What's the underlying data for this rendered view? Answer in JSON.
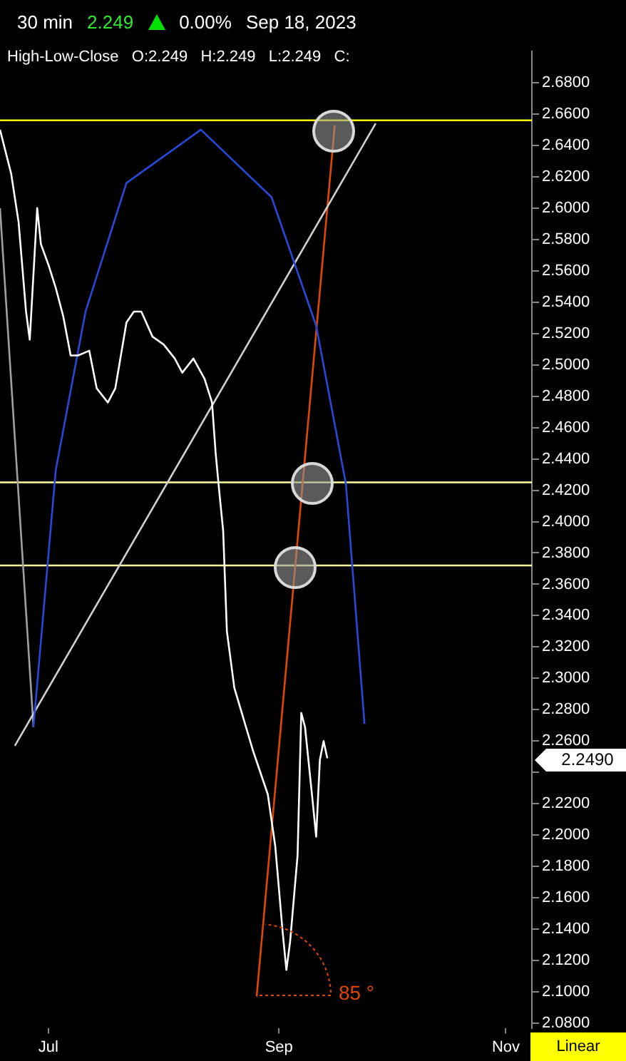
{
  "chart_data": {
    "type": "line",
    "title": "30 min",
    "annotations": [
      "2.249",
      "0.00%",
      "Sep 18, 2023",
      "High-Low-Close   O:2.249   H:2.249   L:2.249   C:",
      "Linear",
      "85 °",
      "2.2490"
    ],
    "xlim": [
      "2023-06-18",
      "2023-11-08"
    ],
    "xticks": [
      {
        "value": "2023-07-01",
        "label": "Jul"
      },
      {
        "value": "2023-09-01",
        "label": "Sep"
      },
      {
        "value": "2023-11-01",
        "label": "Nov"
      }
    ],
    "ylim": [
      2.077,
      2.7
    ],
    "yticks": [
      {
        "value": 2.08,
        "label": "2.0800"
      },
      {
        "value": 2.1,
        "label": "2.1000"
      },
      {
        "value": 2.12,
        "label": "2.1200"
      },
      {
        "value": 2.14,
        "label": "2.1400"
      },
      {
        "value": 2.16,
        "label": "2.1600"
      },
      {
        "value": 2.18,
        "label": "2.1800"
      },
      {
        "value": 2.2,
        "label": "2.2000"
      },
      {
        "value": 2.22,
        "label": "2.2200"
      },
      {
        "value": 2.24,
        "label": null
      },
      {
        "value": 2.26,
        "label": "2.2600"
      },
      {
        "value": 2.28,
        "label": "2.2800"
      },
      {
        "value": 2.3,
        "label": "2.3000"
      },
      {
        "value": 2.32,
        "label": "2.3200"
      },
      {
        "value": 2.34,
        "label": "2.3400"
      },
      {
        "value": 2.36,
        "label": "2.3600"
      },
      {
        "value": 2.38,
        "label": "2.3800"
      },
      {
        "value": 2.4,
        "label": "2.4000"
      },
      {
        "value": 2.42,
        "label": "2.4200"
      },
      {
        "value": 2.44,
        "label": "2.4400"
      },
      {
        "value": 2.46,
        "label": "2.4600"
      },
      {
        "value": 2.48,
        "label": "2.4800"
      },
      {
        "value": 2.5,
        "label": "2.5000"
      },
      {
        "value": 2.52,
        "label": "2.5200"
      },
      {
        "value": 2.54,
        "label": "2.5400"
      },
      {
        "value": 2.56,
        "label": "2.5600"
      },
      {
        "value": 2.58,
        "label": "2.5800"
      },
      {
        "value": 2.6,
        "label": "2.6000"
      },
      {
        "value": 2.62,
        "label": "2.6200"
      },
      {
        "value": 2.64,
        "label": "2.6400"
      },
      {
        "value": 2.66,
        "label": "2.6600"
      },
      {
        "value": 2.68,
        "label": "2.6800"
      }
    ],
    "series": [
      {
        "color": "#ffffff",
        "x": [
          "2023-06-18",
          "2023-06-21",
          "2023-06-23",
          "2023-06-25",
          "2023-06-26",
          "2023-06-28",
          "2023-06-29",
          "2023-07-01",
          "2023-07-03",
          "2023-07-05",
          "2023-07-07",
          "2023-07-09",
          "2023-07-12",
          "2023-07-14",
          "2023-07-17",
          "2023-07-19",
          "2023-07-22",
          "2023-07-24",
          "2023-07-26",
          "2023-07-29",
          "2023-08-01",
          "2023-08-04",
          "2023-08-06",
          "2023-08-09",
          "2023-08-12",
          "2023-08-14",
          "2023-08-15",
          "2023-08-16",
          "2023-08-17",
          "2023-08-18",
          "2023-08-20",
          "2023-08-25",
          "2023-08-29",
          "2023-08-31",
          "2023-09-02",
          "2023-09-03",
          "2023-09-04",
          "2023-09-06",
          "2023-09-07",
          "2023-09-08",
          "2023-09-10",
          "2023-09-11",
          "2023-09-12",
          "2023-09-13",
          "2023-09-14"
        ],
        "values": [
          2.65,
          2.622,
          2.591,
          2.534,
          2.516,
          2.6,
          2.577,
          2.564,
          2.549,
          2.531,
          2.506,
          2.506,
          2.509,
          2.485,
          2.476,
          2.485,
          2.527,
          2.534,
          2.534,
          2.518,
          2.513,
          2.504,
          2.495,
          2.504,
          2.491,
          2.476,
          2.443,
          2.418,
          2.394,
          2.33,
          2.294,
          2.254,
          2.226,
          2.193,
          2.138,
          2.114,
          2.132,
          2.187,
          2.278,
          2.269,
          2.223,
          2.199,
          2.248,
          2.26,
          2.249
        ]
      },
      {
        "color": "#2848d8",
        "x": [
          "2023-06-27",
          "2023-07-03",
          "2023-07-11",
          "2023-07-22",
          "2023-08-11",
          "2023-08-30",
          "2023-09-11",
          "2023-09-19",
          "2023-09-24"
        ],
        "values": [
          2.269,
          2.433,
          2.534,
          2.616,
          2.65,
          2.607,
          2.525,
          2.424,
          2.271
        ]
      },
      {
        "color": "#d0d0d0",
        "x": [
          "2023-06-22",
          "2023-09-27"
        ],
        "values": [
          2.257,
          2.654
        ]
      },
      {
        "color": "#a0a0a0",
        "x": [
          "2023-06-18",
          "2023-06-27"
        ],
        "values": [
          2.6,
          2.269
        ]
      },
      {
        "color": "#e04800",
        "x": [
          "2023-08-26",
          "2023-09-16"
        ],
        "values": [
          2.097,
          2.653
        ]
      }
    ],
    "ref_lines": [
      {
        "axis": "y",
        "value": 2.656,
        "color": "#ffff00"
      },
      {
        "axis": "y",
        "value": 2.425,
        "color": "#ffffa0"
      },
      {
        "axis": "y",
        "value": 2.372,
        "color": "#ffffa0"
      }
    ],
    "grid": false,
    "legend": false,
    "marker": "none",
    "line_style": "solid"
  }
}
